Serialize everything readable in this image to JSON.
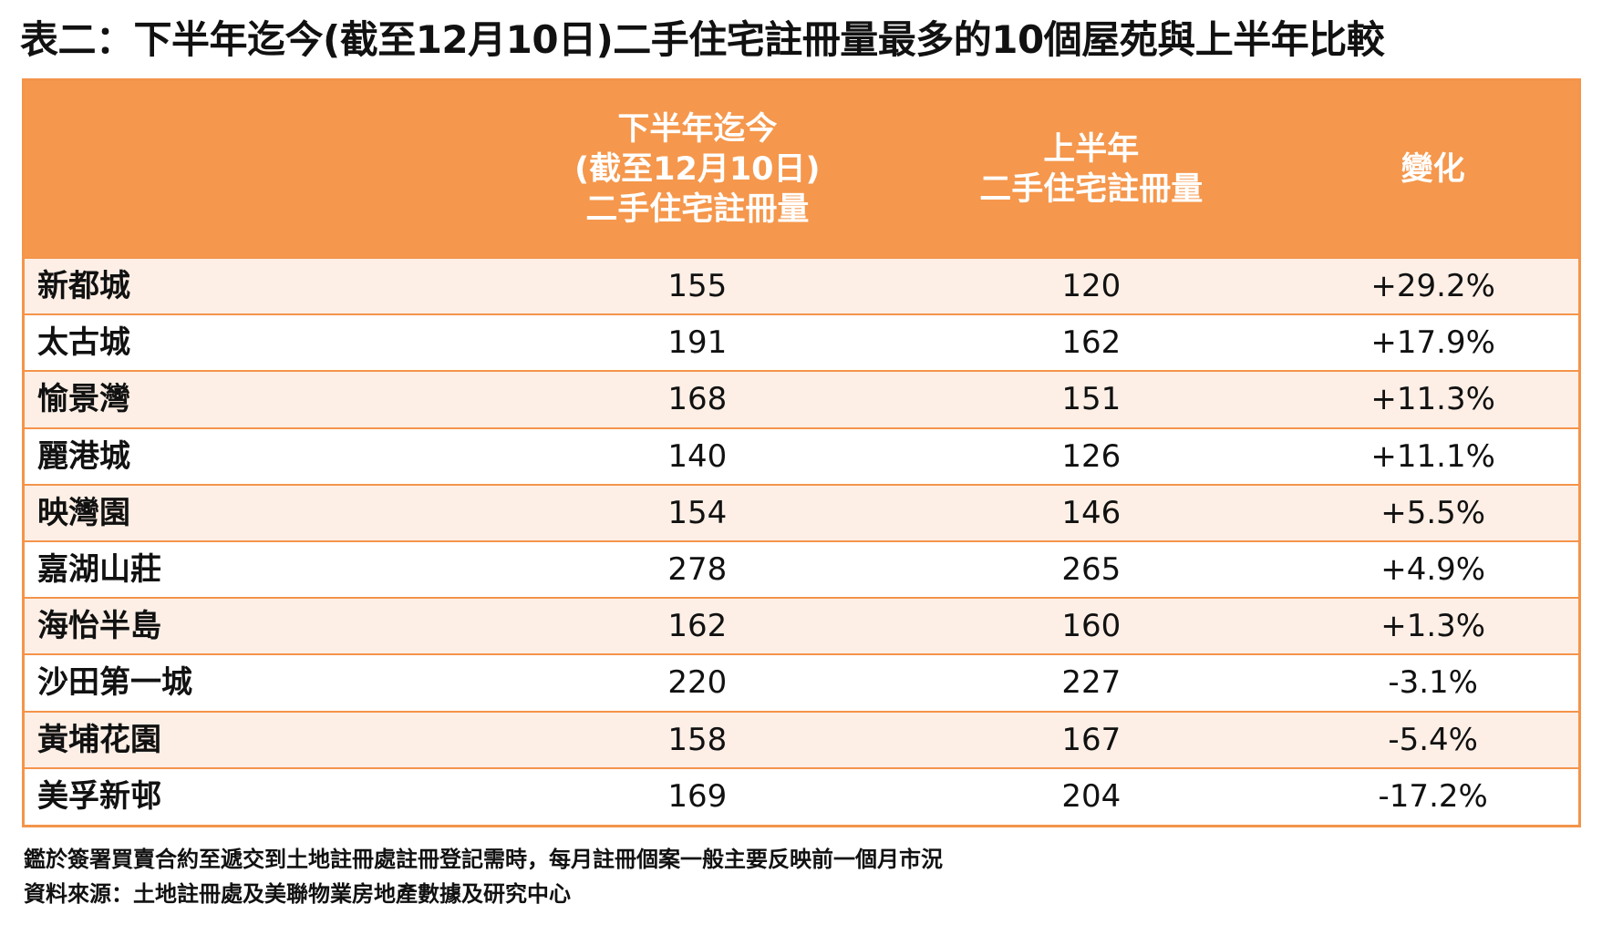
{
  "title": "表二：下半年迄今(截至12月10日)二手住宅註冊量最多的10個屋苑與上半年比較",
  "table": {
    "headers": {
      "name": "",
      "h2_line1": "下半年迄今",
      "h2_line2": "(截至12月10日)",
      "h2_line3": "二手住宅註冊量",
      "h1_line1": "上半年",
      "h1_line2": "二手住宅註冊量",
      "change": "變化"
    },
    "rows": [
      {
        "name": "新都城",
        "h2": "155",
        "h1": "120",
        "change": "+29.2%"
      },
      {
        "name": "太古城",
        "h2": "191",
        "h1": "162",
        "change": "+17.9%"
      },
      {
        "name": "愉景灣",
        "h2": "168",
        "h1": "151",
        "change": "+11.3%"
      },
      {
        "name": "麗港城",
        "h2": "140",
        "h1": "126",
        "change": "+11.1%"
      },
      {
        "name": "映灣園",
        "h2": "154",
        "h1": "146",
        "change": "+5.5%"
      },
      {
        "name": "嘉湖山莊",
        "h2": "278",
        "h1": "265",
        "change": "+4.9%"
      },
      {
        "name": "海怡半島",
        "h2": "162",
        "h1": "160",
        "change": "+1.3%"
      },
      {
        "name": "沙田第一城",
        "h2": "220",
        "h1": "227",
        "change": "-3.1%"
      },
      {
        "name": "黃埔花園",
        "h2": "158",
        "h1": "167",
        "change": "-5.4%"
      },
      {
        "name": "美孚新邨",
        "h2": "169",
        "h1": "204",
        "change": "-17.2%"
      }
    ]
  },
  "notes": {
    "line1": "鑑於簽署買賣合約至遞交到土地註冊處註冊登記需時，每月註冊個案一般主要反映前一個月市況",
    "line2": "資料來源：土地註冊處及美聯物業房地產數據及研究中心"
  },
  "colors": {
    "header_bg": "#f5974c",
    "row_alt_bg": "#fdefe6",
    "border": "#f4944a"
  }
}
